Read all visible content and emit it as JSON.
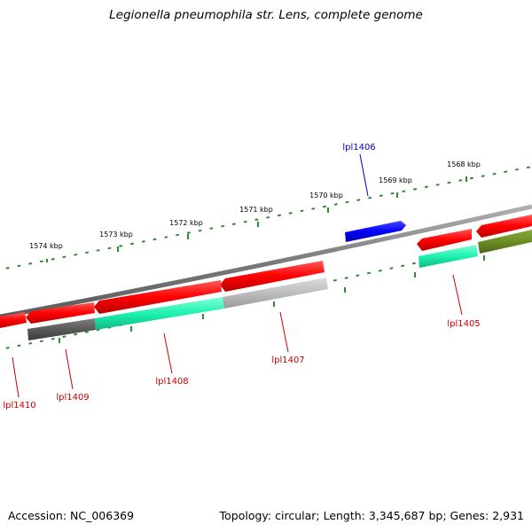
{
  "title": "Legionella pneumophila str. Lens, complete genome",
  "footer": {
    "accession": "Accession: NC_006369",
    "summary": "Topology: circular; Length: 3,345,687 bp; Genes: 2,931"
  },
  "colors": {
    "outer_tick_dot": "#2e8b2e",
    "label_red": "#cc0000",
    "label_blue": "#0000cc",
    "backbone": "#808080"
  },
  "ruler_labels": [
    "1568 kbp",
    "1569 kbp",
    "1570 kbp",
    "1571 kbp",
    "1572 kbp",
    "1573 kbp",
    "1574 kbp"
  ],
  "genes": [
    {
      "name": "lpl1405",
      "label": "lpl1405",
      "color": "#cc0000"
    },
    {
      "name": "lpl1406",
      "label": "lpl1406",
      "color": "#0000cc"
    },
    {
      "name": "lpl1407",
      "label": "lpl1407",
      "color": "#cc0000"
    },
    {
      "name": "lpl1408",
      "label": "lpl1408",
      "color": "#cc0000"
    },
    {
      "name": "lpl1409",
      "label": "lpl1409",
      "color": "#cc0000"
    },
    {
      "name": "lpl1410",
      "label": "lpl1410",
      "color": "#cc0000"
    }
  ]
}
